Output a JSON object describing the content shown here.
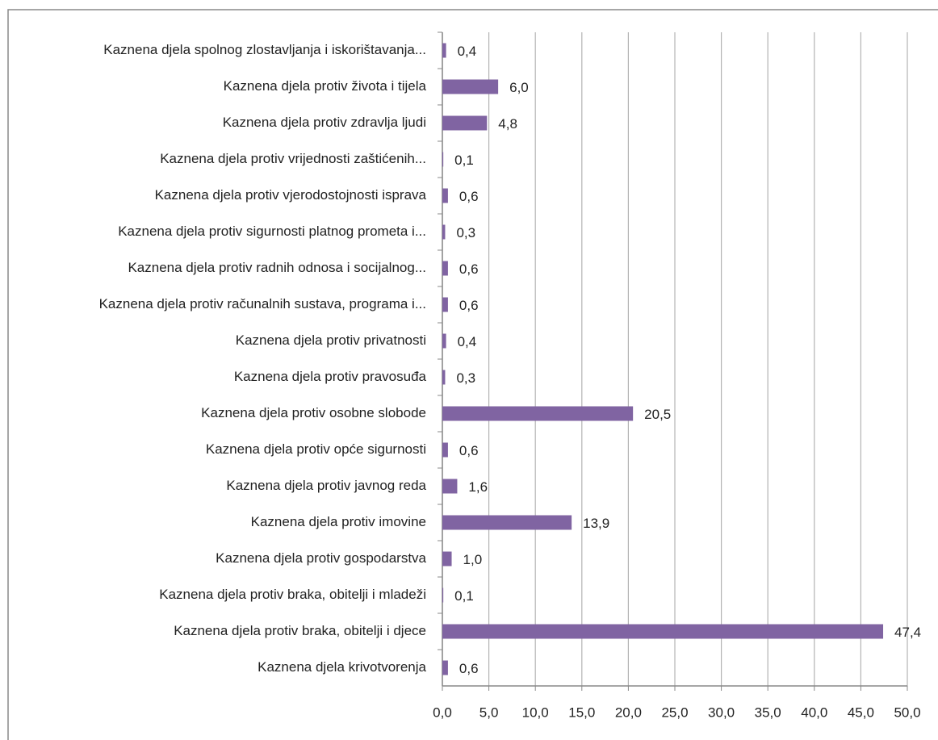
{
  "chart_data": {
    "type": "bar",
    "orientation": "horizontal",
    "categories": [
      "Kaznena djela spolnog zlostavljanja i iskorištavanja...",
      "Kaznena djela protiv života i tijela",
      "Kaznena djela protiv zdravlja ljudi",
      "Kaznena djela protiv vrijednosti zaštićenih...",
      "Kaznena djela protiv vjerodostojnosti isprava",
      "Kaznena djela protiv sigurnosti platnog prometa i...",
      "Kaznena djela protiv radnih odnosa i socijalnog...",
      "Kaznena djela protiv računalnih sustava, programa i...",
      "Kaznena djela protiv privatnosti",
      "Kaznena djela protiv pravosuđa",
      "Kaznena djela protiv osobne slobode",
      "Kaznena djela protiv opće sigurnosti",
      "Kaznena djela protiv javnog reda",
      "Kaznena djela protiv imovine",
      "Kaznena djela protiv gospodarstva",
      "Kaznena djela protiv braka, obitelji i mladeži",
      "Kaznena djela protiv braka, obitelji i djece",
      "Kaznena djela krivotvorenja"
    ],
    "values": [
      0.4,
      6.0,
      4.8,
      0.1,
      0.6,
      0.3,
      0.6,
      0.6,
      0.4,
      0.3,
      20.5,
      0.6,
      1.6,
      13.9,
      1.0,
      0.1,
      47.4,
      0.6
    ],
    "value_labels": [
      "0,4",
      "6,0",
      "4,8",
      "0,1",
      "0,6",
      "0,3",
      "0,6",
      "0,6",
      "0,4",
      "0,3",
      "20,5",
      "0,6",
      "1,6",
      "13,9",
      "1,0",
      "0,1",
      "47,4",
      "0,6"
    ],
    "color": "#8064a2",
    "xlim": [
      0,
      50
    ],
    "xticks": [
      {
        "value": 0,
        "label": "0,0"
      },
      {
        "value": 5,
        "label": "5,0"
      },
      {
        "value": 10,
        "label": "10,0"
      },
      {
        "value": 15,
        "label": "15,0"
      },
      {
        "value": 20,
        "label": "20,0"
      },
      {
        "value": 25,
        "label": "25,0"
      },
      {
        "value": 30,
        "label": "30,0"
      },
      {
        "value": 35,
        "label": "35,0"
      },
      {
        "value": 40,
        "label": "40,0"
      },
      {
        "value": 45,
        "label": "45,0"
      },
      {
        "value": 50,
        "label": "50,0"
      }
    ],
    "grid": true
  }
}
